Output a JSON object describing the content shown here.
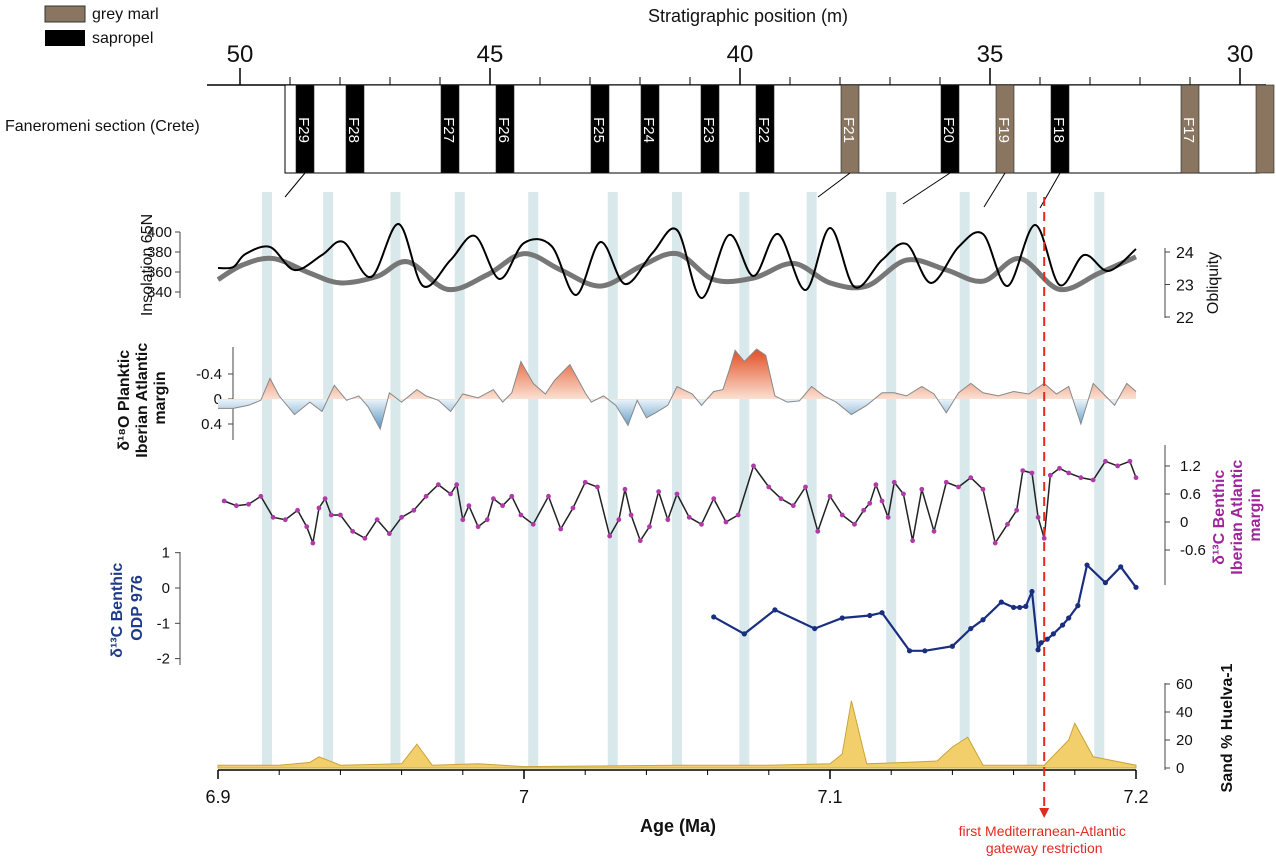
{
  "legend": [
    {
      "label": "grey marl",
      "color": "#8a7560"
    },
    {
      "label": "sapropel",
      "color": "#000000"
    }
  ],
  "section": {
    "label": "Faneromeni section (Crete)",
    "top_axis_title": "Stratigraphic position (m)",
    "top_ticks": [
      "50",
      "45",
      "40",
      "35",
      "30"
    ],
    "beds": [
      {
        "name": "F29",
        "type": "sapropel",
        "m": 48.7
      },
      {
        "name": "F28",
        "type": "sapropel",
        "m": 47.7
      },
      {
        "name": "F27",
        "type": "sapropel",
        "m": 45.8
      },
      {
        "name": "F26",
        "type": "sapropel",
        "m": 44.7
      },
      {
        "name": "F25",
        "type": "sapropel",
        "m": 42.8
      },
      {
        "name": "F24",
        "type": "sapropel",
        "m": 41.8
      },
      {
        "name": "F23",
        "type": "sapropel",
        "m": 40.6
      },
      {
        "name": "F22",
        "type": "sapropel",
        "m": 39.5
      },
      {
        "name": "F21",
        "type": "grey marl",
        "m": 37.8
      },
      {
        "name": "F20",
        "type": "sapropel",
        "m": 35.8
      },
      {
        "name": "F19",
        "type": "grey marl",
        "m": 34.7
      },
      {
        "name": "F18",
        "type": "sapropel",
        "m": 33.6
      },
      {
        "name": "F17",
        "type": "grey marl",
        "m": 31.0
      },
      {
        "name": "",
        "type": "grey marl",
        "m": 29.5
      }
    ]
  },
  "chart_data": {
    "type": "line",
    "xlabel": "Age (Ma)",
    "x_ticks": [
      "6.9",
      "7",
      "7.1",
      "7.2"
    ],
    "xlim": [
      6.9,
      7.2
    ],
    "highlight_bands_ma": [
      6.916,
      6.936,
      6.958,
      6.979,
      7.003,
      7.029,
      7.05,
      7.072,
      7.094,
      7.12,
      7.144,
      7.166,
      7.188
    ],
    "event": {
      "age": 7.17,
      "label_lines": [
        "first Mediterranean-Atlantic",
        "gateway restriction"
      ],
      "color": "#e32a1e"
    },
    "panels": {
      "insolation": {
        "ylabel": "Insolation 65N",
        "y_ticks": [
          "400",
          "380",
          "360",
          "340"
        ],
        "right_label": "Obliquity",
        "right_ticks": [
          "24",
          "23",
          "22"
        ],
        "insolation_series": {
          "x": [
            6.9,
            6.905,
            6.909,
            6.917,
            6.925,
            6.934,
            6.941,
            6.95,
            6.959,
            6.967,
            6.976,
            6.984,
            6.992,
            7.0,
            7.009,
            7.017,
            7.025,
            7.033,
            7.042,
            7.05,
            7.058,
            7.067,
            7.075,
            7.083,
            7.092,
            7.1,
            7.108,
            7.117,
            7.125,
            7.133,
            7.142,
            7.15,
            7.158,
            7.167,
            7.175,
            7.183,
            7.191,
            7.2
          ],
          "values": [
            364,
            365,
            378,
            385,
            362,
            377,
            390,
            355,
            408,
            346,
            372,
            396,
            353,
            389,
            386,
            337,
            390,
            348,
            379,
            402,
            334,
            397,
            356,
            398,
            342,
            404,
            345,
            372,
            388,
            349,
            385,
            398,
            346,
            407,
            347,
            377,
            361,
            383
          ]
        },
        "obliquity_series": {
          "x": [
            6.9,
            6.908,
            6.918,
            6.93,
            6.94,
            6.952,
            6.962,
            6.975,
            6.988,
            7.0,
            7.012,
            7.025,
            7.038,
            7.05,
            7.062,
            7.075,
            7.088,
            7.1,
            7.112,
            7.125,
            7.138,
            7.15,
            7.162,
            7.175,
            7.188,
            7.2
          ],
          "values": [
            23.15,
            23.6,
            23.8,
            23.35,
            23.05,
            23.25,
            23.7,
            22.85,
            23.3,
            23.95,
            23.45,
            22.95,
            23.55,
            23.95,
            23.15,
            23.2,
            23.65,
            23.05,
            22.95,
            23.75,
            23.45,
            23.1,
            23.8,
            22.85,
            23.35,
            23.85
          ]
        }
      },
      "d18o": {
        "ylabel_lines": [
          "δ¹⁸O Planktic",
          "Iberian Atlantic",
          "margin"
        ],
        "y_ticks": [
          "-0.4",
          "0",
          "0.4"
        ],
        "x": [
          6.9,
          6.905,
          6.91,
          6.914,
          6.917,
          6.92,
          6.925,
          6.93,
          6.934,
          6.938,
          6.942,
          6.946,
          6.949,
          6.953,
          6.956,
          6.96,
          6.965,
          6.968,
          6.972,
          6.976,
          6.98,
          6.985,
          6.99,
          6.993,
          6.996,
          6.999,
          7.003,
          7.007,
          7.01,
          7.015,
          7.02,
          7.022,
          7.026,
          7.03,
          7.034,
          7.037,
          7.04,
          7.043,
          7.047,
          7.05,
          7.055,
          7.058,
          7.062,
          7.065,
          7.067,
          7.069,
          7.072,
          7.076,
          7.079,
          7.082,
          7.086,
          7.09,
          7.094,
          7.098,
          7.102,
          7.107,
          7.112,
          7.117,
          7.121,
          7.125,
          7.13,
          7.134,
          7.138,
          7.142,
          7.146,
          7.15,
          7.155,
          7.16,
          7.165,
          7.17,
          7.174,
          7.178,
          7.182,
          7.186,
          7.19,
          7.193,
          7.197,
          7.2
        ],
        "values": [
          0.15,
          0.15,
          0.1,
          0.02,
          -0.33,
          -0.05,
          0.25,
          0.05,
          0.2,
          -0.22,
          0.02,
          -0.05,
          0.12,
          0.48,
          -0.1,
          0.05,
          -0.15,
          -0.05,
          0.02,
          0.2,
          -0.08,
          -0.02,
          -0.15,
          0.05,
          -0.1,
          -0.6,
          -0.25,
          -0.08,
          -0.3,
          -0.55,
          -0.1,
          0.05,
          -0.05,
          0.1,
          0.42,
          0.02,
          0.3,
          0.22,
          0.1,
          -0.2,
          -0.08,
          0.1,
          -0.12,
          -0.15,
          -0.45,
          -0.78,
          -0.6,
          -0.8,
          -0.7,
          -0.05,
          0.05,
          0.03,
          -0.2,
          -0.05,
          0.05,
          0.25,
          0.1,
          -0.1,
          -0.1,
          -0.05,
          -0.2,
          -0.08,
          0.22,
          -0.1,
          -0.25,
          -0.1,
          -0.05,
          -0.12,
          -0.08,
          -0.25,
          -0.08,
          -0.2,
          0.4,
          -0.25,
          -0.05,
          0.1,
          -0.25,
          -0.12
        ]
      },
      "d13c_iberian": {
        "right_label_lines": [
          "δ¹³C Benthic",
          "Iberian Atlantic",
          "margin"
        ],
        "y_ticks": [
          "1.2",
          "0.6",
          "0",
          "-0.6"
        ],
        "x": [
          6.902,
          6.906,
          6.91,
          6.914,
          6.918,
          6.922,
          6.926,
          6.929,
          6.931,
          6.933,
          6.935,
          6.937,
          6.94,
          6.944,
          6.948,
          6.952,
          6.956,
          6.96,
          6.964,
          6.968,
          6.972,
          6.976,
          6.978,
          6.98,
          6.982,
          6.985,
          6.988,
          6.99,
          6.993,
          6.996,
          6.999,
          7.003,
          7.008,
          7.012,
          7.016,
          7.02,
          7.024,
          7.028,
          7.031,
          7.033,
          7.035,
          7.038,
          7.041,
          7.044,
          7.047,
          7.05,
          7.054,
          7.058,
          7.062,
          7.066,
          7.07,
          7.075,
          7.08,
          7.084,
          7.088,
          7.092,
          7.096,
          7.1,
          7.104,
          7.108,
          7.111,
          7.113,
          7.115,
          7.117,
          7.119,
          7.121,
          7.124,
          7.127,
          7.13,
          7.134,
          7.138,
          7.142,
          7.146,
          7.15,
          7.154,
          7.158,
          7.161,
          7.163,
          7.166,
          7.168,
          7.17,
          7.172,
          7.175,
          7.178,
          7.182,
          7.186,
          7.19,
          7.194,
          7.198,
          7.2
        ],
        "values": [
          0.45,
          0.35,
          0.38,
          0.55,
          0.1,
          0.05,
          0.25,
          -0.1,
          -0.45,
          0.3,
          0.5,
          0.15,
          0.15,
          -0.2,
          -0.35,
          0.05,
          -0.25,
          0.1,
          0.25,
          0.55,
          0.8,
          0.6,
          0.8,
          0.05,
          0.35,
          -0.1,
          0.05,
          0.5,
          0.35,
          0.55,
          0.15,
          -0.05,
          0.55,
          -0.15,
          0.3,
          0.85,
          0.75,
          -0.3,
          0.05,
          0.7,
          0.15,
          -0.4,
          -0.1,
          0.65,
          0.05,
          0.6,
          0.1,
          -0.05,
          0.5,
          0.0,
          0.15,
          1.2,
          0.75,
          0.5,
          0.35,
          0.75,
          -0.2,
          0.55,
          0.15,
          -0.05,
          0.25,
          0.4,
          0.8,
          0.45,
          0.1,
          0.85,
          0.6,
          -0.4,
          0.7,
          -0.2,
          0.85,
          0.75,
          0.95,
          0.7,
          -0.45,
          -0.05,
          0.25,
          1.1,
          1.05,
          0.1,
          -0.35,
          1.0,
          1.15,
          1.05,
          0.95,
          0.9,
          1.3,
          1.2,
          1.3,
          0.95
        ]
      },
      "d13c_odp976": {
        "ylabel_lines": [
          "δ¹³C Benthic",
          "ODP 976"
        ],
        "y_ticks": [
          "1",
          "0",
          "-1",
          "-2"
        ],
        "ylim": [
          -2,
          1
        ],
        "x": [
          7.062,
          7.072,
          7.082,
          7.095,
          7.104,
          7.113,
          7.117,
          7.126,
          7.131,
          7.14,
          7.146,
          7.15,
          7.156,
          7.16,
          7.162,
          7.164,
          7.166,
          7.168,
          7.169,
          7.171,
          7.173,
          7.176,
          7.178,
          7.181,
          7.184,
          7.19,
          7.195,
          7.2
        ],
        "values": [
          -0.82,
          -1.3,
          -0.62,
          -1.15,
          -0.85,
          -0.78,
          -0.7,
          -1.78,
          -1.78,
          -1.65,
          -1.15,
          -0.9,
          -0.4,
          -0.55,
          -0.55,
          -0.52,
          -0.1,
          -1.75,
          -1.55,
          -1.45,
          -1.3,
          -1.05,
          -0.85,
          -0.5,
          0.65,
          0.15,
          0.6,
          0.02
        ]
      },
      "sand": {
        "right_label": "Sand % Huelva-1",
        "y_ticks": [
          "60",
          "40",
          "20",
          "0"
        ],
        "ylim": [
          0,
          60
        ],
        "x": [
          6.9,
          6.92,
          6.93,
          6.933,
          6.94,
          6.96,
          6.965,
          6.97,
          6.985,
          7.0,
          7.05,
          7.08,
          7.1,
          7.104,
          7.107,
          7.112,
          7.125,
          7.135,
          7.14,
          7.145,
          7.15,
          7.17,
          7.178,
          7.18,
          7.186,
          7.2
        ],
        "values": [
          2,
          2,
          4,
          8,
          2,
          3,
          17,
          2,
          3,
          1,
          2,
          2,
          3,
          10,
          48,
          3,
          4,
          5,
          15,
          22,
          2,
          2,
          20,
          32,
          8,
          2
        ]
      }
    }
  }
}
